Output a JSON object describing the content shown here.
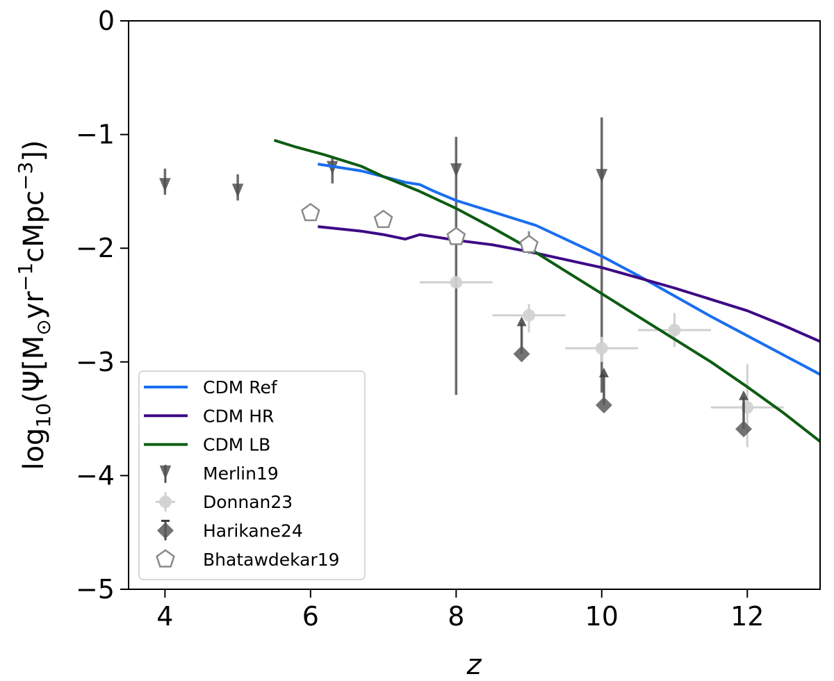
{
  "chart_data": {
    "type": "line",
    "title": "",
    "xlabel": "z",
    "ylabel_parts": {
      "base": "log",
      "sub": "10",
      "open": "(Ψ[M",
      "sun": "⊙",
      "yr": "yr",
      "exp1": "−1",
      "cmpc": "cMpc",
      "exp2": "−3",
      "close": "])"
    },
    "xlim": [
      3.5,
      13
    ],
    "ylim": [
      -5,
      0
    ],
    "xticks": [
      4,
      6,
      8,
      10,
      12
    ],
    "xtick_labels": [
      "4",
      "6",
      "8",
      "10",
      "12"
    ],
    "yticks": [
      0,
      -1,
      -2,
      -3,
      -4,
      -5
    ],
    "ytick_labels": [
      "0",
      "−1",
      "−2",
      "−3",
      "−4",
      "−5"
    ],
    "series": [
      {
        "name": "CDM Ref",
        "color": "#1a6ef0",
        "x": [
          6.1,
          6.7,
          7.3,
          7.5,
          7.7,
          8.0,
          8.5,
          9.1,
          9.5,
          10.0,
          10.5,
          11.0,
          11.5,
          12.0,
          12.5,
          13.0
        ],
        "y": [
          -1.26,
          -1.32,
          -1.42,
          -1.44,
          -1.5,
          -1.58,
          -1.68,
          -1.8,
          -1.92,
          -2.07,
          -2.24,
          -2.42,
          -2.6,
          -2.77,
          -2.94,
          -3.11
        ]
      },
      {
        "name": "CDM HR",
        "color": "#3d0a85",
        "x": [
          6.1,
          6.7,
          7.0,
          7.3,
          7.5,
          7.7,
          8.0,
          8.5,
          9.0,
          9.5,
          10.0,
          10.5,
          11.0,
          11.5,
          12.0,
          12.5,
          13.0
        ],
        "y": [
          -1.81,
          -1.85,
          -1.88,
          -1.92,
          -1.88,
          -1.9,
          -1.93,
          -1.97,
          -2.03,
          -2.1,
          -2.17,
          -2.26,
          -2.35,
          -2.45,
          -2.55,
          -2.68,
          -2.82
        ]
      },
      {
        "name": "CDM LB",
        "color": "#0d5c12",
        "x": [
          5.5,
          5.8,
          6.2,
          6.7,
          7.0,
          7.5,
          8.0,
          8.5,
          9.0,
          9.5,
          10.0,
          10.5,
          11.0,
          11.5,
          12.0,
          12.5,
          13.0
        ],
        "y": [
          -1.05,
          -1.11,
          -1.18,
          -1.28,
          -1.37,
          -1.5,
          -1.65,
          -1.82,
          -2.0,
          -2.2,
          -2.4,
          -2.6,
          -2.8,
          -3.0,
          -3.22,
          -3.45,
          -3.7
        ]
      }
    ],
    "observations": [
      {
        "name": "Merlin19",
        "marker": "triangle-down",
        "color": "#505050",
        "points": [
          {
            "x": 4.0,
            "y": -1.45,
            "yerr_up": 0.15,
            "yerr_down": 0.08
          },
          {
            "x": 5.0,
            "y": -1.5,
            "yerr_up": 0.15,
            "yerr_down": 0.08
          },
          {
            "x": 6.3,
            "y": -1.3,
            "yerr_up": 0.1,
            "yerr_down": 0.13
          },
          {
            "x": 8.0,
            "y": -1.32,
            "yerr_up": 0.3,
            "yerr_down": 1.97
          },
          {
            "x": 10.0,
            "y": -1.37,
            "yerr_up": 0.52,
            "yerr_down": 1.9
          }
        ]
      },
      {
        "name": "Donnan23",
        "marker": "circle",
        "color": "#d0d0d0",
        "points": [
          {
            "x": 8.0,
            "y": -2.3,
            "xerr": 0.5,
            "yerr_up": 0.0,
            "yerr_down": 0.0
          },
          {
            "x": 9.0,
            "y": -2.59,
            "xerr": 0.5,
            "yerr_up": 0.1,
            "yerr_down": 0.15
          },
          {
            "x": 10.0,
            "y": -2.88,
            "xerr": 0.5,
            "yerr_up": 0.1,
            "yerr_down": 0.12
          },
          {
            "x": 11.0,
            "y": -2.72,
            "xerr": 0.5,
            "yerr_up": 0.15,
            "yerr_down": 0.15
          },
          {
            "x": 12.0,
            "y": -3.4,
            "xerr": 0.5,
            "yerr_up": 0.38,
            "yerr_down": 0.35
          }
        ]
      },
      {
        "name": "Harikane24",
        "marker": "diamond",
        "color": "#5a5a5a",
        "points": [
          {
            "x": 8.9,
            "y": -2.93,
            "lower_limit_to": -2.6
          },
          {
            "x": 10.03,
            "y": -3.38,
            "lower_limit_to": -3.05
          },
          {
            "x": 11.95,
            "y": -3.59,
            "lower_limit_to": -3.25
          }
        ]
      },
      {
        "name": "Bhatawdekar19",
        "marker": "pentagon",
        "color": "#8a8a8a",
        "points": [
          {
            "x": 6.0,
            "y": -1.69,
            "yerr_up": 0.0,
            "yerr_down": 0.0
          },
          {
            "x": 7.0,
            "y": -1.75,
            "yerr_up": 0.0,
            "yerr_down": 0.0
          },
          {
            "x": 8.0,
            "y": -1.9,
            "yerr_up": 0.0,
            "yerr_down": 0.0
          },
          {
            "x": 9.0,
            "y": -1.97,
            "yerr_up": 0.12,
            "yerr_down": 0.08
          }
        ]
      }
    ],
    "legend": {
      "position": "bottom-left",
      "entries": [
        "CDM Ref",
        "CDM HR",
        "CDM LB",
        "Merlin19",
        "Donnan23",
        "Harikane24",
        "Bhatawdekar19"
      ]
    }
  }
}
